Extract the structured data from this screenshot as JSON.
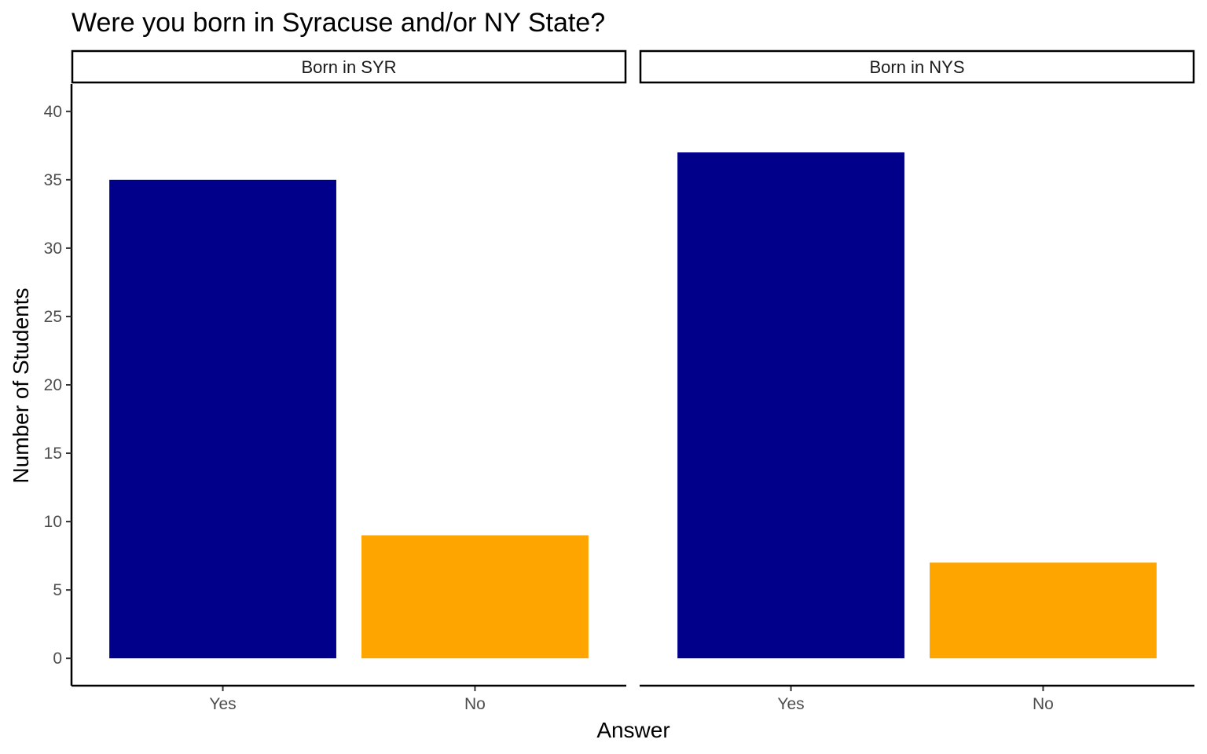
{
  "chart_data": {
    "type": "bar",
    "title": "Were you born in Syracuse and/or NY State?",
    "xlabel": "Answer",
    "ylabel": "Number of Students",
    "ylim": [
      -2,
      42
    ],
    "yticks": [
      0,
      5,
      10,
      15,
      20,
      25,
      30,
      35,
      40
    ],
    "categories": [
      "Yes",
      "No"
    ],
    "category_colors": {
      "Yes": "#00008B",
      "No": "#FFA500"
    },
    "grid": false,
    "legend": "none",
    "facets": [
      {
        "label": "Born in SYR",
        "values": [
          35,
          9
        ]
      },
      {
        "label": "Born in NYS",
        "values": [
          37,
          7
        ]
      }
    ]
  }
}
